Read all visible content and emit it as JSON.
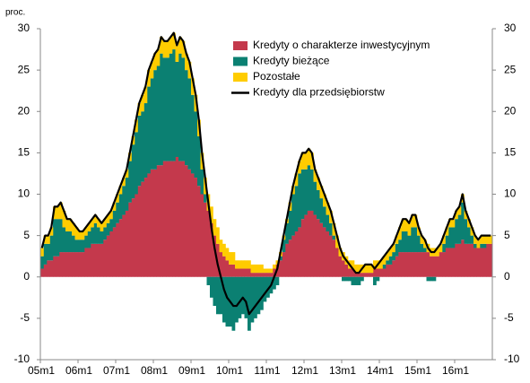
{
  "chart_data": {
    "type": "stacked_bar_line",
    "y_unit_label": "proc.",
    "categories": [
      "05m1",
      null,
      null,
      null,
      null,
      null,
      null,
      null,
      null,
      null,
      null,
      null,
      "06m1",
      null,
      null,
      null,
      null,
      null,
      null,
      null,
      null,
      null,
      null,
      null,
      "07m1",
      null,
      null,
      null,
      null,
      null,
      null,
      null,
      null,
      null,
      null,
      null,
      "08m1",
      null,
      null,
      null,
      null,
      null,
      null,
      null,
      null,
      null,
      null,
      null,
      "09m1",
      null,
      null,
      null,
      null,
      null,
      null,
      null,
      null,
      null,
      null,
      null,
      "10m1",
      null,
      null,
      null,
      null,
      null,
      null,
      null,
      null,
      null,
      null,
      null,
      "11m1",
      null,
      null,
      null,
      null,
      null,
      null,
      null,
      null,
      null,
      null,
      null,
      "12m1",
      null,
      null,
      null,
      null,
      null,
      null,
      null,
      null,
      null,
      null,
      null,
      "13m1",
      null,
      null,
      null,
      null,
      null,
      null,
      null,
      null,
      null,
      null,
      null,
      "14m1",
      null,
      null,
      null,
      null,
      null,
      null,
      null,
      null,
      null,
      null,
      null,
      "15m1",
      null,
      null,
      null,
      null,
      null,
      null,
      null,
      null,
      null,
      null,
      null,
      "16m1",
      null,
      null,
      null,
      null,
      null,
      null,
      null,
      null,
      null,
      null,
      null
    ],
    "series": [
      {
        "name": "Kredyty o charakterze inwestycyjnym",
        "kind": "bar",
        "color": "#c4394c",
        "values": [
          1,
          1.5,
          2,
          2,
          2.5,
          2.5,
          3,
          3,
          3,
          3,
          3,
          3,
          3,
          3,
          3.5,
          3.5,
          4,
          4,
          4,
          4,
          4.5,
          5,
          5.5,
          6,
          6.5,
          7,
          7.5,
          8,
          9,
          9.5,
          10,
          11,
          11.5,
          12,
          12.5,
          13,
          13,
          13.5,
          13.5,
          14,
          14,
          14,
          14,
          14.5,
          14,
          14,
          13.5,
          13,
          12.5,
          12,
          11,
          10,
          9,
          8,
          6.5,
          5,
          4,
          3,
          2.5,
          2,
          1.5,
          1.5,
          1,
          1,
          1,
          1,
          1,
          0.5,
          0.5,
          0.5,
          0.5,
          0.5,
          0.5,
          0.5,
          1,
          1.5,
          2,
          3,
          4,
          4.5,
          5,
          5.5,
          6,
          7,
          7.5,
          8,
          8,
          7.5,
          7,
          6.5,
          6,
          5.5,
          5,
          4.5,
          3.5,
          2.5,
          2,
          1.5,
          1,
          1,
          0.5,
          0.5,
          0.5,
          0.5,
          0.5,
          0.5,
          1,
          1,
          1,
          1,
          1.5,
          1.5,
          2,
          2.5,
          3,
          3,
          3,
          3,
          3,
          3,
          3,
          3,
          3,
          3,
          2.5,
          2.5,
          2.5,
          3,
          3,
          3.5,
          3.5,
          3.5,
          4,
          4,
          4.5,
          4,
          4,
          4,
          3.5,
          3.5,
          3.5,
          3.5,
          4,
          4
        ]
      },
      {
        "name": "Kredyty bieżące",
        "kind": "bar",
        "color": "#0b8072",
        "values": [
          1.5,
          2.5,
          2,
          3,
          4.5,
          4.5,
          4,
          3,
          2.5,
          2.5,
          2,
          1.5,
          1.5,
          1.5,
          1.5,
          2,
          2,
          2.5,
          2,
          1.5,
          1.5,
          1.5,
          1.5,
          2,
          2.5,
          3,
          3.5,
          4,
          5,
          6.5,
          7.5,
          8.5,
          8.5,
          9,
          10.5,
          11,
          12,
          12,
          13.5,
          12.5,
          12.5,
          13,
          13.5,
          11.5,
          13,
          12.5,
          11.5,
          11,
          9.5,
          8,
          6,
          3,
          1,
          -1,
          -2.5,
          -3.5,
          -4.5,
          -4.5,
          -5.5,
          -6,
          -6,
          -6.5,
          -5.5,
          -5,
          -4.5,
          -5,
          -6.5,
          -5.5,
          -5,
          -4.5,
          -4,
          -3,
          -2.5,
          -2,
          -1.5,
          -1,
          0.5,
          1.5,
          2.5,
          3.5,
          5,
          5.5,
          6.5,
          6,
          5.5,
          5.5,
          5,
          4,
          3.5,
          3,
          2.5,
          2,
          1.5,
          0.5,
          0,
          0,
          -0.5,
          -0.5,
          -0.5,
          -1,
          -1,
          -1,
          -0.5,
          0,
          0,
          0,
          -1,
          -0.5,
          0,
          0.5,
          0.5,
          1,
          1,
          1.5,
          1.5,
          2.5,
          2.5,
          2,
          3,
          3,
          2,
          1,
          0.5,
          -0.5,
          -0.5,
          -0.5,
          0,
          0,
          1,
          1.5,
          2.5,
          2.5,
          3,
          3.5,
          4.5,
          3,
          2,
          1,
          0.5,
          0,
          0.5,
          0.5,
          0,
          0
        ]
      },
      {
        "name": "Pozostałe",
        "kind": "bar",
        "color": "#ffcc00",
        "values": [
          1,
          1,
          1,
          1,
          1.5,
          1.5,
          2,
          2,
          1.5,
          1.5,
          1.5,
          1.5,
          1,
          1,
          1,
          1,
          1,
          1,
          1,
          1,
          1,
          1,
          1,
          1,
          1,
          1,
          1,
          1,
          1,
          1,
          1.5,
          1.5,
          2,
          2,
          2,
          2,
          2,
          2,
          2,
          2,
          2,
          2,
          2,
          2,
          2,
          2,
          2,
          2,
          2,
          2,
          2,
          2,
          2,
          2,
          2,
          2,
          2,
          1.5,
          1.5,
          1.5,
          1.5,
          1.5,
          1,
          1,
          1,
          1,
          1,
          1,
          1,
          1,
          1,
          0.5,
          0.5,
          0.5,
          0.5,
          0.5,
          0.5,
          0.5,
          0.5,
          1,
          1,
          1.5,
          1.5,
          2,
          2,
          2,
          2,
          1.5,
          1.5,
          1.5,
          1.5,
          1.5,
          1.5,
          1.5,
          1.5,
          1,
          1,
          1,
          1,
          1,
          1,
          1,
          1,
          1,
          1,
          1,
          1,
          1,
          1,
          1,
          1,
          1,
          1,
          1,
          1.5,
          1.5,
          1.5,
          1.5,
          1.5,
          1.5,
          1,
          1,
          1,
          1,
          1,
          1,
          1,
          1,
          1,
          1,
          1,
          1,
          1,
          1,
          1,
          1,
          1,
          1,
          1,
          1,
          1,
          1,
          1,
          1
        ]
      },
      {
        "name": "Kredyty dla przedsiębiorstw",
        "kind": "line",
        "color": "#000000",
        "values": [
          3.5,
          5,
          5,
          6,
          8.5,
          8.5,
          9,
          8,
          7,
          7,
          6.5,
          6,
          5.5,
          5.5,
          6,
          6.5,
          7,
          7.5,
          7,
          6.5,
          7,
          7.5,
          8,
          9,
          10,
          11,
          12,
          13,
          15,
          17,
          19,
          21,
          22,
          23,
          25,
          26,
          27,
          27.5,
          29,
          28.5,
          28.5,
          29,
          29.5,
          28,
          29,
          28.5,
          27,
          26,
          24,
          22,
          19,
          15,
          12,
          9,
          6,
          3.5,
          1.5,
          0,
          -1.5,
          -2.5,
          -3,
          -3.5,
          -3.5,
          -3,
          -2.5,
          -3,
          -4.5,
          -4,
          -3.5,
          -3,
          -2.5,
          -2,
          -1.5,
          -1,
          0,
          1,
          3,
          5,
          7,
          9,
          11,
          12.5,
          14,
          15,
          15,
          15.5,
          15,
          13,
          12,
          11,
          10,
          9,
          8,
          6.5,
          5,
          3.5,
          2.5,
          2,
          1.5,
          1,
          0.5,
          0.5,
          1,
          1.5,
          1.5,
          1.5,
          1,
          1.5,
          2,
          2.5,
          3,
          3.5,
          4,
          5,
          6,
          7,
          7,
          6.5,
          7.5,
          7.5,
          6,
          5,
          4.5,
          3.5,
          3,
          3,
          3.5,
          4,
          5,
          6,
          7,
          7,
          8,
          8.5,
          10,
          8,
          7,
          6,
          5,
          4.5,
          5,
          5,
          5,
          5
        ]
      }
    ],
    "ylim": [
      -10,
      30
    ],
    "yticks": [
      -10,
      -5,
      0,
      5,
      10,
      15,
      20,
      25,
      30
    ],
    "y2lim": [
      -10,
      30
    ],
    "y2ticks": [
      -10,
      -5,
      0,
      5,
      10,
      15,
      20,
      25,
      30
    ],
    "legend": "top-right"
  }
}
